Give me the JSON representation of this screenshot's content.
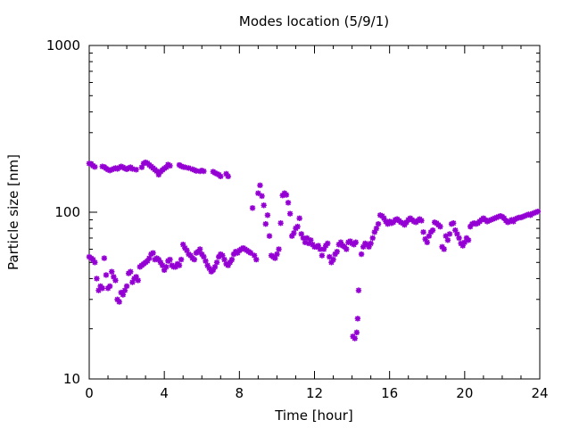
{
  "chart_data": {
    "type": "scatter",
    "title": "Modes location (5/9/1)",
    "xlabel": "Time [hour]",
    "ylabel": "Particle size [nm]",
    "xlim": [
      0,
      24
    ],
    "ylim": [
      10,
      1000
    ],
    "yscale": "log",
    "xticks": [
      "0",
      "4",
      "8",
      "12",
      "16",
      "20",
      "24"
    ],
    "yticks": [
      "10",
      "100",
      "1000"
    ],
    "grid": false,
    "legend": "none",
    "marker": "asterisk",
    "color": "#9400d3",
    "series": [
      {
        "points": [
          [
            0.0,
            196
          ],
          [
            0.1,
            195
          ],
          [
            0.2,
            190
          ],
          [
            0.3,
            187
          ],
          [
            0.7,
            188
          ],
          [
            0.8,
            187
          ],
          [
            0.9,
            183
          ],
          [
            1.0,
            180
          ],
          [
            1.1,
            178
          ],
          [
            1.2,
            180
          ],
          [
            1.3,
            182
          ],
          [
            1.4,
            184
          ],
          [
            1.5,
            182
          ],
          [
            1.6,
            185
          ],
          [
            1.7,
            188
          ],
          [
            1.8,
            186
          ],
          [
            1.9,
            183
          ],
          [
            2.0,
            181
          ],
          [
            2.1,
            184
          ],
          [
            2.2,
            186
          ],
          [
            2.3,
            182
          ],
          [
            2.5,
            180
          ],
          [
            2.8,
            186
          ],
          [
            2.9,
            196
          ],
          [
            3.0,
            199
          ],
          [
            3.1,
            197
          ],
          [
            3.2,
            192
          ],
          [
            3.3,
            188
          ],
          [
            3.4,
            184
          ],
          [
            3.5,
            180
          ],
          [
            3.6,
            176
          ],
          [
            3.7,
            168
          ],
          [
            3.8,
            175
          ],
          [
            3.9,
            179
          ],
          [
            4.0,
            183
          ],
          [
            4.1,
            186
          ],
          [
            4.2,
            193
          ],
          [
            4.3,
            190
          ],
          [
            4.8,
            192
          ],
          [
            4.9,
            189
          ],
          [
            5.0,
            187
          ],
          [
            5.1,
            186
          ],
          [
            5.3,
            184
          ],
          [
            5.5,
            181
          ],
          [
            5.6,
            179
          ],
          [
            5.7,
            177
          ],
          [
            5.9,
            176
          ],
          [
            6.0,
            178
          ],
          [
            6.1,
            176
          ],
          [
            6.6,
            175
          ],
          [
            6.7,
            172
          ],
          [
            6.8,
            170
          ],
          [
            6.9,
            168
          ],
          [
            7.0,
            164
          ],
          [
            7.3,
            170
          ],
          [
            7.4,
            164
          ]
        ]
      },
      {
        "points": [
          [
            0.0,
            54
          ],
          [
            0.1,
            53
          ],
          [
            0.2,
            52
          ],
          [
            0.3,
            50
          ],
          [
            0.4,
            40
          ],
          [
            0.5,
            34
          ],
          [
            0.6,
            36
          ],
          [
            0.7,
            35
          ],
          [
            0.8,
            53
          ],
          [
            0.9,
            42
          ],
          [
            1.0,
            35
          ],
          [
            1.1,
            36
          ],
          [
            1.2,
            44
          ],
          [
            1.3,
            41
          ],
          [
            1.4,
            39
          ],
          [
            1.5,
            30
          ],
          [
            1.6,
            29
          ],
          [
            1.7,
            33
          ],
          [
            1.8,
            32
          ],
          [
            1.9,
            34
          ],
          [
            2.0,
            36
          ],
          [
            2.1,
            43
          ],
          [
            2.2,
            44
          ],
          [
            2.3,
            38
          ],
          [
            2.4,
            40
          ],
          [
            2.5,
            41
          ],
          [
            2.6,
            39
          ],
          [
            2.7,
            47
          ],
          [
            2.8,
            48
          ],
          [
            2.9,
            49
          ],
          [
            3.0,
            50
          ],
          [
            3.1,
            51
          ],
          [
            3.2,
            53
          ],
          [
            3.3,
            56
          ],
          [
            3.4,
            57
          ],
          [
            3.5,
            52
          ],
          [
            3.6,
            53
          ],
          [
            3.7,
            52
          ],
          [
            3.8,
            50
          ],
          [
            3.9,
            48
          ],
          [
            4.0,
            45
          ],
          [
            4.1,
            47
          ],
          [
            4.2,
            51
          ],
          [
            4.3,
            52
          ],
          [
            4.4,
            48
          ],
          [
            4.5,
            47
          ],
          [
            4.6,
            47
          ],
          [
            4.7,
            49
          ],
          [
            4.8,
            48
          ],
          [
            4.9,
            52
          ],
          [
            5.0,
            64
          ],
          [
            5.1,
            61
          ],
          [
            5.2,
            59
          ],
          [
            5.3,
            56
          ],
          [
            5.4,
            55
          ],
          [
            5.5,
            53
          ],
          [
            5.6,
            52
          ],
          [
            5.7,
            57
          ],
          [
            5.8,
            58
          ],
          [
            5.9,
            60
          ],
          [
            6.0,
            56
          ],
          [
            6.1,
            54
          ],
          [
            6.2,
            51
          ],
          [
            6.3,
            48
          ],
          [
            6.4,
            46
          ],
          [
            6.5,
            44
          ],
          [
            6.6,
            45
          ],
          [
            6.7,
            47
          ],
          [
            6.8,
            50
          ],
          [
            6.9,
            54
          ],
          [
            7.0,
            56
          ],
          [
            7.1,
            55
          ],
          [
            7.2,
            52
          ],
          [
            7.3,
            49
          ],
          [
            7.4,
            48
          ],
          [
            7.5,
            50
          ],
          [
            7.6,
            52
          ],
          [
            7.7,
            56
          ],
          [
            7.8,
            58
          ],
          [
            7.9,
            57
          ],
          [
            8.0,
            59
          ],
          [
            8.1,
            60
          ],
          [
            8.2,
            61
          ],
          [
            8.3,
            60
          ],
          [
            8.4,
            59
          ],
          [
            8.5,
            58
          ],
          [
            8.6,
            57
          ],
          [
            8.7,
            106
          ],
          [
            8.8,
            55
          ],
          [
            8.9,
            52
          ],
          [
            9.0,
            130
          ],
          [
            9.1,
            145
          ],
          [
            9.2,
            125
          ],
          [
            9.3,
            110
          ],
          [
            9.4,
            85
          ],
          [
            9.5,
            96
          ],
          [
            9.6,
            72
          ],
          [
            9.7,
            55
          ],
          [
            9.8,
            54
          ],
          [
            9.9,
            53
          ],
          [
            10.0,
            56
          ],
          [
            10.1,
            60
          ],
          [
            10.2,
            86
          ],
          [
            10.3,
            126
          ],
          [
            10.4,
            130
          ],
          [
            10.5,
            127
          ],
          [
            10.6,
            114
          ],
          [
            10.7,
            98
          ],
          [
            10.8,
            72
          ],
          [
            10.9,
            75
          ],
          [
            11.0,
            80
          ],
          [
            11.1,
            82
          ],
          [
            11.2,
            92
          ],
          [
            11.3,
            74
          ],
          [
            11.4,
            70
          ],
          [
            11.5,
            66
          ],
          [
            11.6,
            70
          ],
          [
            11.7,
            65
          ],
          [
            11.8,
            68
          ],
          [
            11.9,
            64
          ],
          [
            12.0,
            62
          ],
          [
            12.1,
            62
          ],
          [
            12.2,
            63
          ],
          [
            12.3,
            60
          ],
          [
            12.4,
            55
          ],
          [
            12.5,
            60
          ],
          [
            12.6,
            63
          ],
          [
            12.7,
            65
          ],
          [
            12.8,
            54
          ],
          [
            12.9,
            50
          ],
          [
            13.0,
            52
          ],
          [
            13.1,
            56
          ],
          [
            13.2,
            58
          ],
          [
            13.3,
            64
          ],
          [
            13.4,
            66
          ],
          [
            13.5,
            63
          ],
          [
            13.6,
            62
          ],
          [
            13.7,
            60
          ],
          [
            13.8,
            66
          ],
          [
            13.9,
            67
          ],
          [
            14.0,
            65
          ],
          [
            14.1,
            64
          ],
          [
            14.2,
            66
          ],
          [
            14.05,
            18
          ],
          [
            14.15,
            17.5
          ],
          [
            14.25,
            19
          ],
          [
            14.3,
            23
          ],
          [
            14.35,
            34
          ],
          [
            14.5,
            56
          ],
          [
            14.6,
            62
          ],
          [
            14.7,
            65
          ],
          [
            14.8,
            64
          ],
          [
            14.9,
            62
          ],
          [
            15.0,
            65
          ],
          [
            15.1,
            70
          ],
          [
            15.2,
            76
          ],
          [
            15.3,
            80
          ],
          [
            15.4,
            85
          ],
          [
            15.5,
            96
          ],
          [
            15.6,
            95
          ],
          [
            15.7,
            92
          ],
          [
            15.8,
            88
          ],
          [
            15.9,
            85
          ],
          [
            16.0,
            88
          ],
          [
            16.1,
            86
          ],
          [
            16.2,
            87
          ],
          [
            16.3,
            90
          ],
          [
            16.4,
            91
          ],
          [
            16.5,
            89
          ],
          [
            16.6,
            87
          ],
          [
            16.7,
            86
          ],
          [
            16.8,
            84
          ],
          [
            16.9,
            87
          ],
          [
            17.0,
            90
          ],
          [
            17.1,
            92
          ],
          [
            17.2,
            90
          ],
          [
            17.3,
            88
          ],
          [
            17.4,
            87
          ],
          [
            17.5,
            89
          ],
          [
            17.6,
            91
          ],
          [
            17.7,
            89
          ],
          [
            17.8,
            76
          ],
          [
            17.9,
            69
          ],
          [
            18.0,
            66
          ],
          [
            18.1,
            72
          ],
          [
            18.2,
            76
          ],
          [
            18.3,
            78
          ],
          [
            18.4,
            87
          ],
          [
            18.5,
            86
          ],
          [
            18.6,
            84
          ],
          [
            18.7,
            82
          ],
          [
            18.8,
            62
          ],
          [
            18.9,
            60
          ],
          [
            19.0,
            72
          ],
          [
            19.1,
            68
          ],
          [
            19.2,
            74
          ],
          [
            19.3,
            85
          ],
          [
            19.4,
            86
          ],
          [
            19.5,
            78
          ],
          [
            19.6,
            74
          ],
          [
            19.7,
            70
          ],
          [
            19.8,
            65
          ],
          [
            19.9,
            63
          ],
          [
            20.0,
            66
          ],
          [
            20.1,
            70
          ],
          [
            20.2,
            68
          ],
          [
            20.3,
            82
          ],
          [
            20.4,
            85
          ],
          [
            20.5,
            86
          ],
          [
            20.6,
            85
          ],
          [
            20.7,
            86
          ],
          [
            20.8,
            88
          ],
          [
            20.9,
            90
          ],
          [
            21.0,
            92
          ],
          [
            21.1,
            90
          ],
          [
            21.2,
            88
          ],
          [
            21.3,
            89
          ],
          [
            21.4,
            90
          ],
          [
            21.5,
            91
          ],
          [
            21.6,
            92
          ],
          [
            21.7,
            93
          ],
          [
            21.8,
            94
          ],
          [
            21.9,
            95
          ],
          [
            22.0,
            94
          ],
          [
            22.1,
            92
          ],
          [
            22.2,
            89
          ],
          [
            22.3,
            87
          ],
          [
            22.4,
            88
          ],
          [
            22.5,
            90
          ],
          [
            22.6,
            88
          ],
          [
            22.7,
            91
          ],
          [
            22.8,
            92
          ],
          [
            22.9,
            93
          ],
          [
            23.0,
            93
          ],
          [
            23.1,
            94
          ],
          [
            23.2,
            95
          ],
          [
            23.3,
            96
          ],
          [
            23.4,
            97
          ],
          [
            23.5,
            96
          ],
          [
            23.6,
            98
          ],
          [
            23.7,
            99
          ],
          [
            23.8,
            100
          ],
          [
            23.9,
            101
          ]
        ]
      }
    ]
  }
}
